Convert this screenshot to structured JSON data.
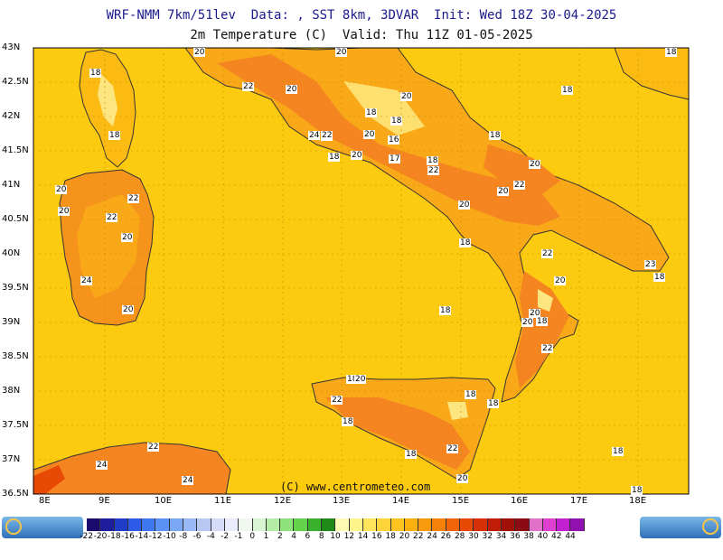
{
  "header": {
    "title_line1": "WRF-NMM 7km/51lev  Data: , SST 8km, 3DVAR  Init: Wed 18Z 30-04-2025",
    "title_line2": "2m Temperature (C)  Valid: Thu 11Z 01-05-2025"
  },
  "axes": {
    "y_ticks": [
      "43N",
      "42.5N",
      "42N",
      "41.5N",
      "41N",
      "40.5N",
      "40N",
      "39.5N",
      "39N",
      "38.5N",
      "38N",
      "37.5N",
      "37N",
      "36.5N"
    ],
    "x_ticks": [
      "8E",
      "9E",
      "10E",
      "11E",
      "12E",
      "13E",
      "14E",
      "15E",
      "16E",
      "17E",
      "18E"
    ]
  },
  "copyright": "(C) www.centrometeo.com",
  "temp_labels": [
    "18",
    "18",
    "22",
    "22",
    "20",
    "24",
    "22",
    "20",
    "16",
    "17",
    "18",
    "20",
    "18",
    "22",
    "20",
    "20",
    "22",
    "18",
    "20",
    "22",
    "22",
    "20",
    "20",
    "24",
    "20",
    "20",
    "18",
    "18",
    "20",
    "22",
    "23",
    "18",
    "18",
    "22",
    "20",
    "20",
    "18",
    "24",
    "24",
    "22",
    "18",
    "22",
    "20",
    "18",
    "18",
    "18",
    "18",
    "18",
    "20",
    "22",
    "18",
    "20",
    "20",
    "18",
    "18",
    "20",
    "18"
  ],
  "colorbar": {
    "labels": [
      "-22",
      "-20",
      "-18",
      "-16",
      "-14",
      "-12",
      "-10",
      "-8",
      "-6",
      "-4",
      "-2",
      "-1",
      "0",
      "1",
      "2",
      "4",
      "6",
      "8",
      "10",
      "12",
      "14",
      "16",
      "18",
      "20",
      "22",
      "24",
      "26",
      "28",
      "30",
      "32",
      "34",
      "36",
      "38",
      "40",
      "42",
      "44"
    ],
    "colors": [
      "#1a0a6e",
      "#1e1e9c",
      "#1f3cc8",
      "#2d5ae6",
      "#3d78f0",
      "#5c92f5",
      "#7aa8f5",
      "#9ab8f5",
      "#b8c8f5",
      "#d6dcf8",
      "#e8ecfb",
      "#f0f8f0",
      "#d7f5d2",
      "#b4eea6",
      "#8fe37a",
      "#64d24d",
      "#3bb22e",
      "#1f8a17",
      "#fdfbb4",
      "#fdf48a",
      "#fde45a",
      "#fdd43a",
      "#fdc420",
      "#fcb010",
      "#f99a0c",
      "#f5800a",
      "#f06408",
      "#e84a06",
      "#d83006",
      "#c01c06",
      "#a01006",
      "#8c0a14",
      "#e070c8",
      "#e040d0",
      "#c020d0",
      "#9010b0"
    ],
    "logo_text": "centrometeo"
  }
}
